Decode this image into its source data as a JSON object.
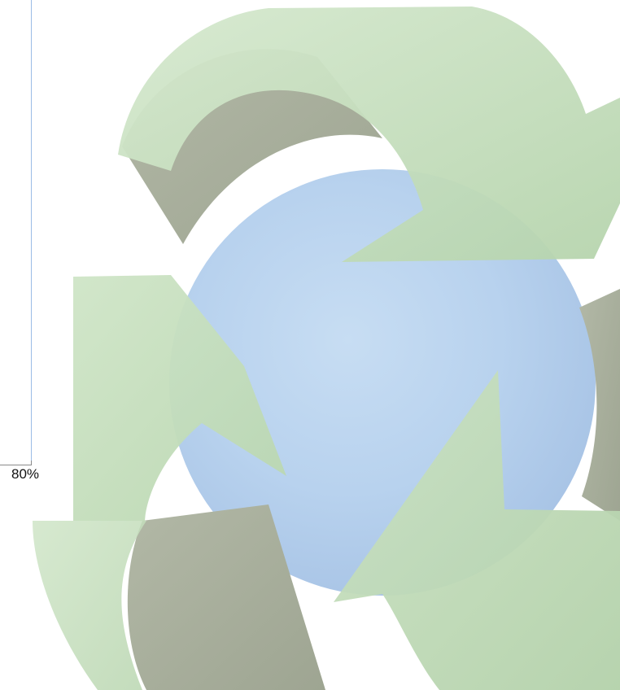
{
  "zoom": {
    "value_text": "80%"
  },
  "illustration": {
    "icon_name": "recycle-globe-icon",
    "colors": {
      "arrow_light": "#c6dfbe",
      "arrow_mid": "#b7d4ae",
      "arrow_shadow": "#a7ad9b",
      "globe": "#bcd5ef",
      "globe_shade": "#a9c5e6"
    }
  }
}
